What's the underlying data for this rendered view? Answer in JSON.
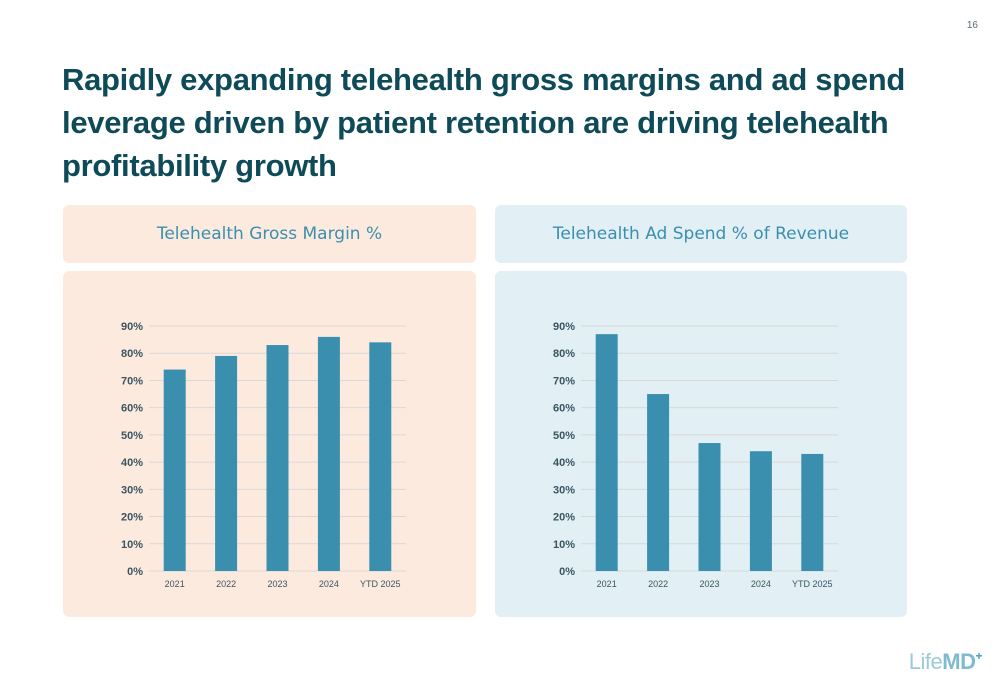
{
  "page": {
    "number": "16"
  },
  "headline": "Rapidly expanding telehealth gross margins and ad spend leverage driven by patient retention are driving telehealth profitability growth",
  "panels": {
    "left": {
      "title": "Telehealth Gross Margin %"
    },
    "right": {
      "title": "Telehealth Ad Spend % of Revenue"
    }
  },
  "logo": {
    "text_main": "Life",
    "text_md": "MD",
    "plus": "+"
  },
  "colors": {
    "bar": "#3a8fae",
    "left_panel": "#fdeadf",
    "right_panel": "#e2eff5",
    "headline": "#0e4a57",
    "axis_text": "#3a5560"
  },
  "chart_data": [
    {
      "type": "bar",
      "title": "Telehealth Gross Margin %",
      "categories": [
        "2021",
        "2022",
        "2023",
        "2024",
        "YTD 2025"
      ],
      "values": [
        74,
        79,
        83,
        86,
        84
      ],
      "yticks": [
        "0%",
        "10%",
        "20%",
        "30%",
        "40%",
        "50%",
        "60%",
        "70%",
        "80%",
        "90%"
      ],
      "ylim": [
        0,
        90
      ],
      "grid": true,
      "xlabel": "",
      "ylabel": ""
    },
    {
      "type": "bar",
      "title": "Telehealth Ad Spend % of Revenue",
      "categories": [
        "2021",
        "2022",
        "2023",
        "2024",
        "YTD 2025"
      ],
      "values": [
        87,
        65,
        47,
        44,
        43
      ],
      "yticks": [
        "0%",
        "10%",
        "20%",
        "30%",
        "40%",
        "50%",
        "60%",
        "70%",
        "80%",
        "90%"
      ],
      "ylim": [
        0,
        90
      ],
      "grid": true,
      "xlabel": "",
      "ylabel": ""
    }
  ]
}
